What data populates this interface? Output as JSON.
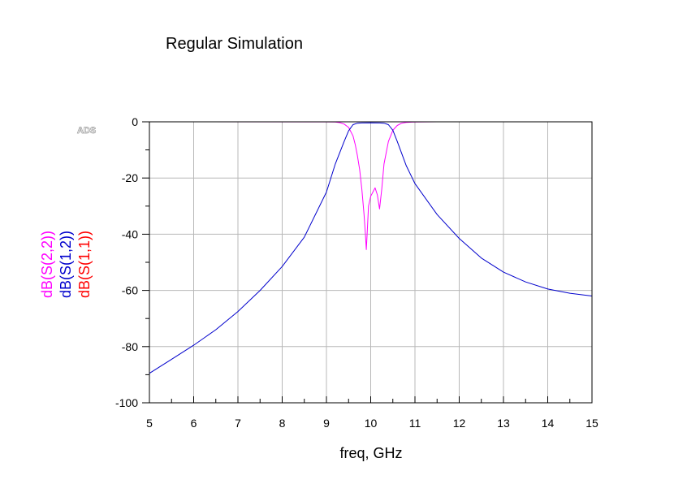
{
  "chart_data": {
    "type": "line",
    "title": "Regular Simulation",
    "xlabel": "freq, GHz",
    "logo_text": "ADS",
    "xlim": [
      5,
      15
    ],
    "ylim": [
      -100,
      0
    ],
    "x_ticks": [
      5,
      6,
      7,
      8,
      9,
      10,
      11,
      12,
      13,
      14,
      15
    ],
    "y_ticks": [
      0,
      -20,
      -40,
      -60,
      -80,
      -100
    ],
    "grid": true,
    "series": [
      {
        "name": "dB(S(2,2))",
        "color": "#ff00ff",
        "x": [
          5,
          9.0,
          9.2,
          9.3,
          9.4,
          9.5,
          9.6,
          9.65,
          9.7,
          9.75,
          9.8,
          9.85,
          9.88,
          9.9,
          9.92,
          9.95,
          10.0,
          10.05,
          10.1,
          10.15,
          10.2,
          10.25,
          10.3,
          10.4,
          10.5,
          10.6,
          10.7,
          10.8,
          11.0,
          11.5,
          15
        ],
        "y": [
          0,
          -0.02,
          -0.1,
          -0.3,
          -0.8,
          -2.0,
          -5.0,
          -8.0,
          -12.0,
          -17.0,
          -24.0,
          -33.0,
          -40.0,
          -45.5,
          -40.0,
          -30.0,
          -26.5,
          -25.0,
          -23.5,
          -26.0,
          -31.0,
          -24.0,
          -15.0,
          -7.0,
          -3.0,
          -1.3,
          -0.5,
          -0.2,
          -0.05,
          -0.01,
          0
        ]
      },
      {
        "name": "dB(S(1,2))",
        "color": "#0000cc",
        "x": [
          5,
          5.5,
          6,
          6.5,
          7,
          7.5,
          8,
          8.5,
          9,
          9.2,
          9.4,
          9.5,
          9.6,
          9.7,
          9.8,
          10.0,
          10.2,
          10.3,
          10.4,
          10.5,
          10.6,
          10.8,
          11,
          11.5,
          12,
          12.5,
          13,
          13.5,
          14,
          14.5,
          15
        ],
        "y": [
          -89.5,
          -84.5,
          -79.5,
          -74,
          -67.5,
          -60,
          -51.5,
          -41,
          -25,
          -15,
          -7,
          -3.2,
          -1.0,
          -0.5,
          -0.4,
          -0.35,
          -0.4,
          -0.5,
          -1.0,
          -3.0,
          -7.0,
          -15.5,
          -22,
          -33,
          -41.5,
          -48.5,
          -53.5,
          -57,
          -59.5,
          -61,
          -62
        ]
      },
      {
        "name": "dB(S(1,1))",
        "color": "#ff0000",
        "x": [
          8.15,
          12.3
        ],
        "y": [
          0,
          0
        ]
      }
    ]
  }
}
